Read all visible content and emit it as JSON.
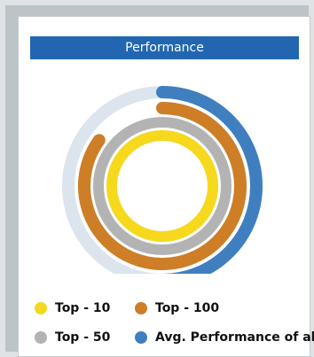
{
  "chart_data": {
    "type": "radial-bar",
    "title": "Performance",
    "value_range": [
      0,
      100
    ],
    "series": [
      {
        "name": "Top - 10",
        "value": 100,
        "color": "#f6d81d"
      },
      {
        "name": "Top - 50",
        "value": 100,
        "color": "#b3b3b3"
      },
      {
        "name": "Top - 100",
        "value": 85,
        "color": "#cd7e26"
      },
      {
        "name": "Avg. Performance of all",
        "value": 50,
        "color": "#3f7fc0"
      }
    ],
    "track_color": "#dce4ee",
    "legend_position": "bottom"
  }
}
